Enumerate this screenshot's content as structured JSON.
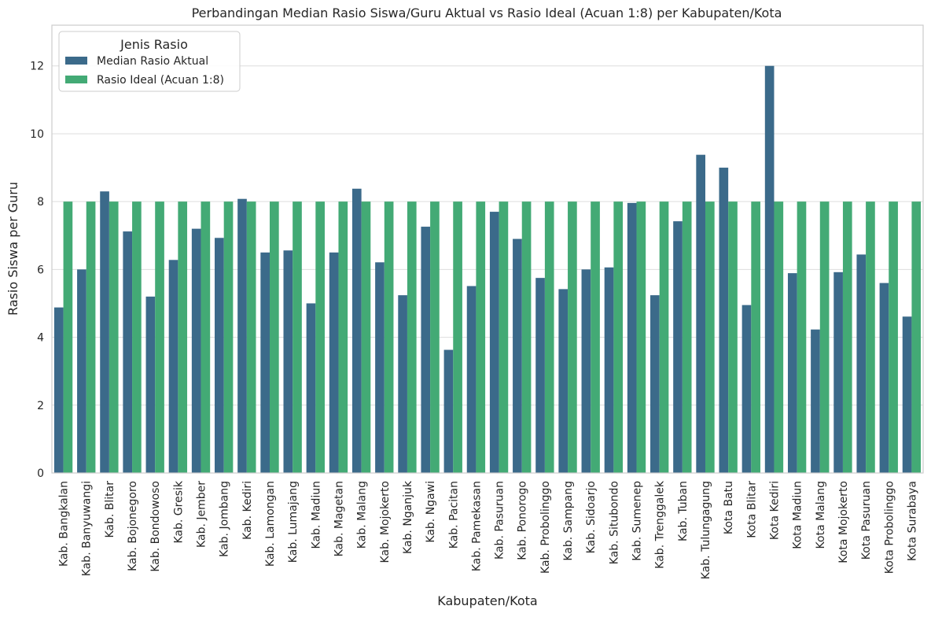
{
  "chart_data": {
    "type": "bar",
    "title": "Perbandingan Median Rasio Siswa/Guru Aktual vs Rasio Ideal (Acuan 1:8) per Kabupaten/Kota",
    "xlabel": "Kabupaten/Kota",
    "ylabel": "Rasio Siswa per Guru",
    "ylim": [
      0,
      13.2
    ],
    "yticks": [
      0,
      2,
      4,
      6,
      8,
      10,
      12
    ],
    "grid": true,
    "legend": {
      "title": "Jenis Rasio",
      "placement": "top-left"
    },
    "categories": [
      "Kab. Bangkalan",
      "Kab. Banyuwangi",
      "Kab. Blitar",
      "Kab. Bojonegoro",
      "Kab. Bondowoso",
      "Kab. Gresik",
      "Kab. Jember",
      "Kab. Jombang",
      "Kab. Kediri",
      "Kab. Lamongan",
      "Kab. Lumajang",
      "Kab. Madiun",
      "Kab. Magetan",
      "Kab. Malang",
      "Kab. Mojokerto",
      "Kab. Nganjuk",
      "Kab. Ngawi",
      "Kab. Pacitan",
      "Kab. Pamekasan",
      "Kab. Pasuruan",
      "Kab. Ponorogo",
      "Kab. Probolinggo",
      "Kab. Sampang",
      "Kab. Sidoarjo",
      "Kab. Situbondo",
      "Kab. Sumenep",
      "Kab. Trenggalek",
      "Kab. Tuban",
      "Kab. Tulungagung",
      "Kota Batu",
      "Kota Blitar",
      "Kota Kediri",
      "Kota Madiun",
      "Kota Malang",
      "Kota Mojokerto",
      "Kota Pasuruan",
      "Kota Probolinggo",
      "Kota Surabaya"
    ],
    "series": [
      {
        "name": "Median Rasio Aktual",
        "color": "#3b6a8a",
        "values": [
          4.88,
          6.0,
          8.3,
          7.12,
          5.2,
          6.28,
          7.2,
          6.93,
          8.08,
          6.5,
          6.56,
          5.0,
          6.5,
          8.38,
          6.21,
          5.24,
          7.26,
          3.63,
          5.51,
          7.7,
          6.9,
          5.75,
          5.42,
          6.0,
          6.06,
          7.96,
          5.24,
          7.42,
          9.38,
          9.0,
          4.95,
          12.0,
          5.89,
          4.23,
          5.92,
          6.44,
          5.6,
          4.61
        ]
      },
      {
        "name": "Rasio Ideal (Acuan 1:8)",
        "color": "#43aa75",
        "values": [
          8,
          8,
          8,
          8,
          8,
          8,
          8,
          8,
          8,
          8,
          8,
          8,
          8,
          8,
          8,
          8,
          8,
          8,
          8,
          8,
          8,
          8,
          8,
          8,
          8,
          8,
          8,
          8,
          8,
          8,
          8,
          8,
          8,
          8,
          8,
          8,
          8,
          8
        ]
      }
    ]
  }
}
